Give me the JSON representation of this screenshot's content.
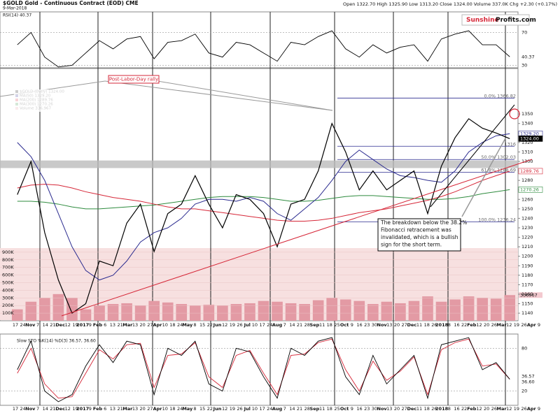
{
  "chart_data": {
    "type": "line",
    "title": "$GOLD Gold - Continuous Contract (EOD) CME",
    "date": "9-Mar-2018",
    "quote": "Open 1322.70 High 1325.90 Low 1313.20 Close 1324.00 Volume 337.0K Chg +2.30 (+0.17%)",
    "logo": [
      "Sunshine",
      "Profits.com"
    ],
    "x_labels": [
      "17",
      "24",
      "Nov",
      "7",
      "14",
      "21",
      "Dec",
      "12",
      "19",
      "2017",
      "9",
      "Feb",
      "6",
      "13",
      "21",
      "Mar",
      "13",
      "20",
      "27",
      "Apr",
      "10",
      "18",
      "24",
      "May",
      "8",
      "15",
      "22",
      "Jun",
      "12",
      "19",
      "26",
      "Jul",
      "10",
      "17",
      "24",
      "Aug",
      "7",
      "14",
      "21",
      "28",
      "Sep",
      "11",
      "18",
      "25",
      "Oct",
      "9",
      "16",
      "23",
      "30",
      "Nov",
      "13",
      "20",
      "27",
      "Dec",
      "11",
      "18",
      "26",
      "2018",
      "8",
      "16",
      "22",
      "Feb",
      "12",
      "20",
      "26",
      "Mar",
      "12",
      "19",
      "26",
      "Apr",
      "9"
    ],
    "ylim": [
      1132,
      1398
    ],
    "yticks": [
      1140,
      1150,
      1160,
      1170,
      1180,
      1190,
      1200,
      1210,
      1220,
      1230,
      1240,
      1250,
      1260,
      1270,
      1280,
      1290,
      1300,
      1310,
      1320,
      1330,
      1340,
      1350
    ],
    "series": [
      {
        "name": "$GOLD (Daily) 1324.00",
        "color": "#000000",
        "values": [
          1265,
          1300,
          1225,
          1175,
          1140,
          1150,
          1195,
          1190,
          1235,
          1255,
          1205,
          1245,
          1255,
          1285,
          1255,
          1230,
          1265,
          1260,
          1245,
          1210,
          1255,
          1260,
          1290,
          1340,
          1310,
          1270,
          1290,
          1270,
          1280,
          1290,
          1245,
          1295,
          1325,
          1345,
          1335,
          1330,
          1324
        ]
      },
      {
        "name": "MA(50) 1329.20",
        "color": "#2b2b8f",
        "values": [
          1320,
          1305,
          1280,
          1245,
          1210,
          1185,
          1175,
          1180,
          1195,
          1215,
          1225,
          1230,
          1240,
          1255,
          1260,
          1260,
          1258,
          1262,
          1258,
          1245,
          1238,
          1250,
          1262,
          1280,
          1300,
          1312,
          1302,
          1292,
          1285,
          1283,
          1280,
          1278,
          1290,
          1310,
          1320,
          1327,
          1329.2
        ]
      },
      {
        "name": "MA(200) 1289.76",
        "color": "#d62738",
        "values": [
          1272,
          1275,
          1276,
          1275,
          1272,
          1268,
          1265,
          1262,
          1260,
          1258,
          1255,
          1252,
          1250,
          1250,
          1248,
          1246,
          1244,
          1242,
          1240,
          1238,
          1237,
          1237,
          1238,
          1240,
          1243,
          1246,
          1248,
          1250,
          1253,
          1256,
          1259,
          1263,
          1268,
          1274,
          1280,
          1285,
          1289.76
        ]
      },
      {
        "name": "MA(300) 1270.26",
        "color": "#2e8b3e",
        "values": [
          1258,
          1258,
          1257,
          1255,
          1252,
          1250,
          1250,
          1251,
          1252,
          1253,
          1254,
          1256,
          1258,
          1260,
          1262,
          1263,
          1263,
          1263,
          1262,
          1260,
          1258,
          1258,
          1259,
          1261,
          1263,
          1264,
          1264,
          1263,
          1262,
          1261,
          1260,
          1260,
          1261,
          1263,
          1266,
          1268,
          1270.26
        ]
      }
    ],
    "price_tags": [
      {
        "value": 1329.2,
        "label": "1329.20",
        "color": "#2b2b8f"
      },
      {
        "value": 1324,
        "label": "1324.00",
        "color": "#000000"
      },
      {
        "value": 1289.76,
        "label": "1289.76",
        "color": "#d62738"
      },
      {
        "value": 1270.26,
        "label": "1270.26",
        "color": "#2e8b3e"
      }
    ],
    "fib": [
      {
        "value": 1366.82,
        "label": "0.0% 1366.82"
      },
      {
        "value": 1316,
        "label": "1316"
      },
      {
        "value": 1302.03,
        "label": "50.0% 1302.03"
      },
      {
        "value": 1288.69,
        "label": "61.8% 1288.69"
      },
      {
        "value": 1236.24,
        "label": "100.0% 1236.24"
      }
    ],
    "support_zone": [
      1293,
      1301
    ],
    "annotations": {
      "rally": "Post-Labor-Day rally",
      "breakdown": [
        "The breakdown below the 38.2%",
        "Fibonacci retracement was",
        "invalidated, which is a bullish",
        "sign for the short term."
      ]
    },
    "volume": {
      "name": "Volume 336,967",
      "color": "#e39aa4",
      "ylim": [
        0,
        1000000
      ],
      "yticks": [
        {
          "value": 100000,
          "label": "100K"
        },
        {
          "value": 200000,
          "label": "200K"
        },
        {
          "value": 300000,
          "label": "300K"
        },
        {
          "value": 400000,
          "label": "400K"
        },
        {
          "value": 500000,
          "label": "500K"
        },
        {
          "value": 600000,
          "label": "600K"
        },
        {
          "value": 700000,
          "label": "700K"
        },
        {
          "value": 800000,
          "label": "800K"
        },
        {
          "value": 900000,
          "label": "900K"
        }
      ],
      "tag": 336967,
      "values": [
        150000,
        250000,
        300000,
        350000,
        300000,
        150000,
        200000,
        220000,
        230000,
        200000,
        260000,
        240000,
        220000,
        200000,
        210000,
        200000,
        220000,
        230000,
        260000,
        250000,
        230000,
        220000,
        270000,
        300000,
        280000,
        260000,
        220000,
        250000,
        230000,
        260000,
        320000,
        250000,
        280000,
        320000,
        300000,
        290000,
        336967
      ]
    },
    "rsi": {
      "name": "RSI(14) 40.37",
      "color": "#000000",
      "ylim": [
        27,
        95
      ],
      "yticks": [
        30,
        70
      ],
      "tag": 40.37,
      "values": [
        55,
        70,
        40,
        28,
        30,
        45,
        60,
        50,
        62,
        65,
        38,
        58,
        60,
        68,
        45,
        40,
        58,
        55,
        45,
        35,
        58,
        55,
        65,
        72,
        50,
        40,
        55,
        45,
        52,
        55,
        35,
        62,
        68,
        72,
        55,
        55,
        40.37
      ]
    },
    "sto": {
      "name": "Slow STO %K(14) %D(3) 36.57, 36.60",
      "ylim": [
        0,
        100
      ],
      "yticks": [
        20,
        80
      ],
      "tags": [
        36.57,
        {
          "value": 36.6,
          "label": "36.60"
        }
      ],
      "k": {
        "color": "#000000",
        "values": [
          50,
          90,
          20,
          5,
          15,
          55,
          85,
          60,
          90,
          85,
          15,
          80,
          70,
          90,
          30,
          20,
          80,
          75,
          40,
          10,
          80,
          70,
          90,
          95,
          40,
          15,
          70,
          30,
          50,
          70,
          10,
          85,
          90,
          95,
          50,
          60,
          36.57
        ]
      },
      "d": {
        "color": "#d62738",
        "values": [
          45,
          80,
          30,
          10,
          12,
          45,
          78,
          65,
          85,
          87,
          25,
          70,
          72,
          88,
          40,
          25,
          70,
          77,
          45,
          15,
          70,
          72,
          88,
          93,
          50,
          20,
          62,
          35,
          48,
          68,
          15,
          78,
          88,
          93,
          55,
          58,
          36.6
        ]
      }
    }
  }
}
